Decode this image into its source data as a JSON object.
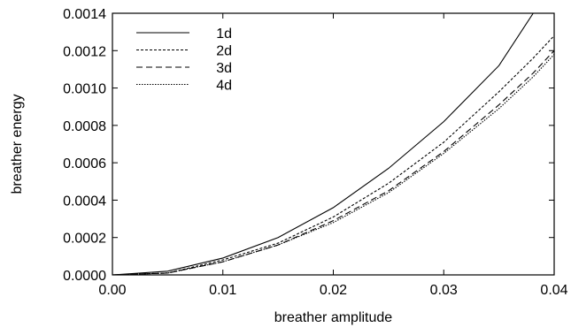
{
  "chart_data": {
    "type": "line",
    "xlabel": "breather amplitude",
    "ylabel": "breather energy",
    "xlim": [
      0.0,
      0.04
    ],
    "ylim": [
      0.0,
      0.0014
    ],
    "x_ticks": [
      "0.00",
      "0.01",
      "0.02",
      "0.03",
      "0.04"
    ],
    "y_ticks": [
      "0.0000",
      "0.0002",
      "0.0004",
      "0.0006",
      "0.0008",
      "0.0010",
      "0.0012",
      "0.0014"
    ],
    "grid": false,
    "legend_position": "top-left",
    "x": [
      0.0,
      0.005,
      0.01,
      0.015,
      0.02,
      0.025,
      0.03,
      0.035,
      0.0381,
      0.04
    ],
    "series": [
      {
        "name": "1d",
        "dash": "solid",
        "values": [
          0.0,
          2e-05,
          9e-05,
          0.0002,
          0.00036,
          0.00057,
          0.00082,
          0.00112,
          0.0014,
          null
        ]
      },
      {
        "name": "2d",
        "dash": "dotted-fine",
        "values": [
          0.0,
          1e-05,
          8e-05,
          0.00017,
          0.00031,
          0.00049,
          0.00071,
          0.00098,
          0.00116,
          0.00128
        ]
      },
      {
        "name": "3d",
        "dash": "dashed",
        "values": [
          0.0,
          1e-05,
          7e-05,
          0.00016,
          0.00029,
          0.00045,
          0.00066,
          0.00091,
          0.00108,
          0.0012
        ]
      },
      {
        "name": "4d",
        "dash": "dotted",
        "values": [
          0.0,
          1e-05,
          7e-05,
          0.00016,
          0.00028,
          0.00044,
          0.00065,
          0.00089,
          0.00106,
          0.00118
        ]
      }
    ]
  }
}
